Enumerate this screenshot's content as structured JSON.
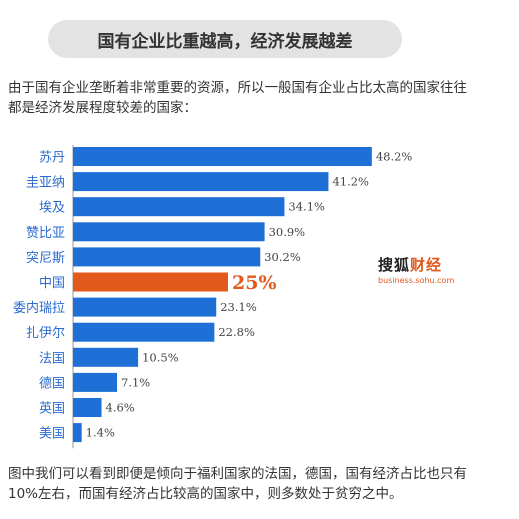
{
  "header": {
    "title": "国有企业比重越高，经济发展越差"
  },
  "intro": {
    "text": "由于国有企业垄断着非常重要的资源，所以一般国有企业占比太高的国家往往都是经济发展程度较差的国家："
  },
  "brand": {
    "name_part1": "搜狐",
    "name_part2": "财经",
    "url": "business.sohu.com"
  },
  "footer": {
    "text": "图中我们可以看到即便是倾向于福利国家的法国，德国，国有经济占比也只有10%左右，而国有经济占比较高的国家中，则多数处于贫穷之中。"
  },
  "chart_data": {
    "type": "bar",
    "orientation": "horizontal",
    "categories": [
      "苏丹",
      "圭亚纳",
      "埃及",
      "赞比亚",
      "突尼斯",
      "中国",
      "委内瑞拉",
      "扎伊尔",
      "法国",
      "德国",
      "英国",
      "美国"
    ],
    "values": [
      48.2,
      41.2,
      34.1,
      30.9,
      30.2,
      25,
      23.1,
      22.8,
      10.5,
      7.1,
      4.6,
      1.4
    ],
    "value_labels": [
      "48.2%",
      "41.2%",
      "34.1%",
      "30.9%",
      "30.2%",
      "25%",
      "23.1%",
      "22.8%",
      "10.5%",
      "7.1%",
      "4.6%",
      "1.4%"
    ],
    "highlight_index": 5,
    "colors": {
      "bar": "#1e6fd6",
      "highlight": "#e3581b",
      "axis": "#999999"
    },
    "xlim": [
      0,
      50
    ],
    "grid": false
  }
}
